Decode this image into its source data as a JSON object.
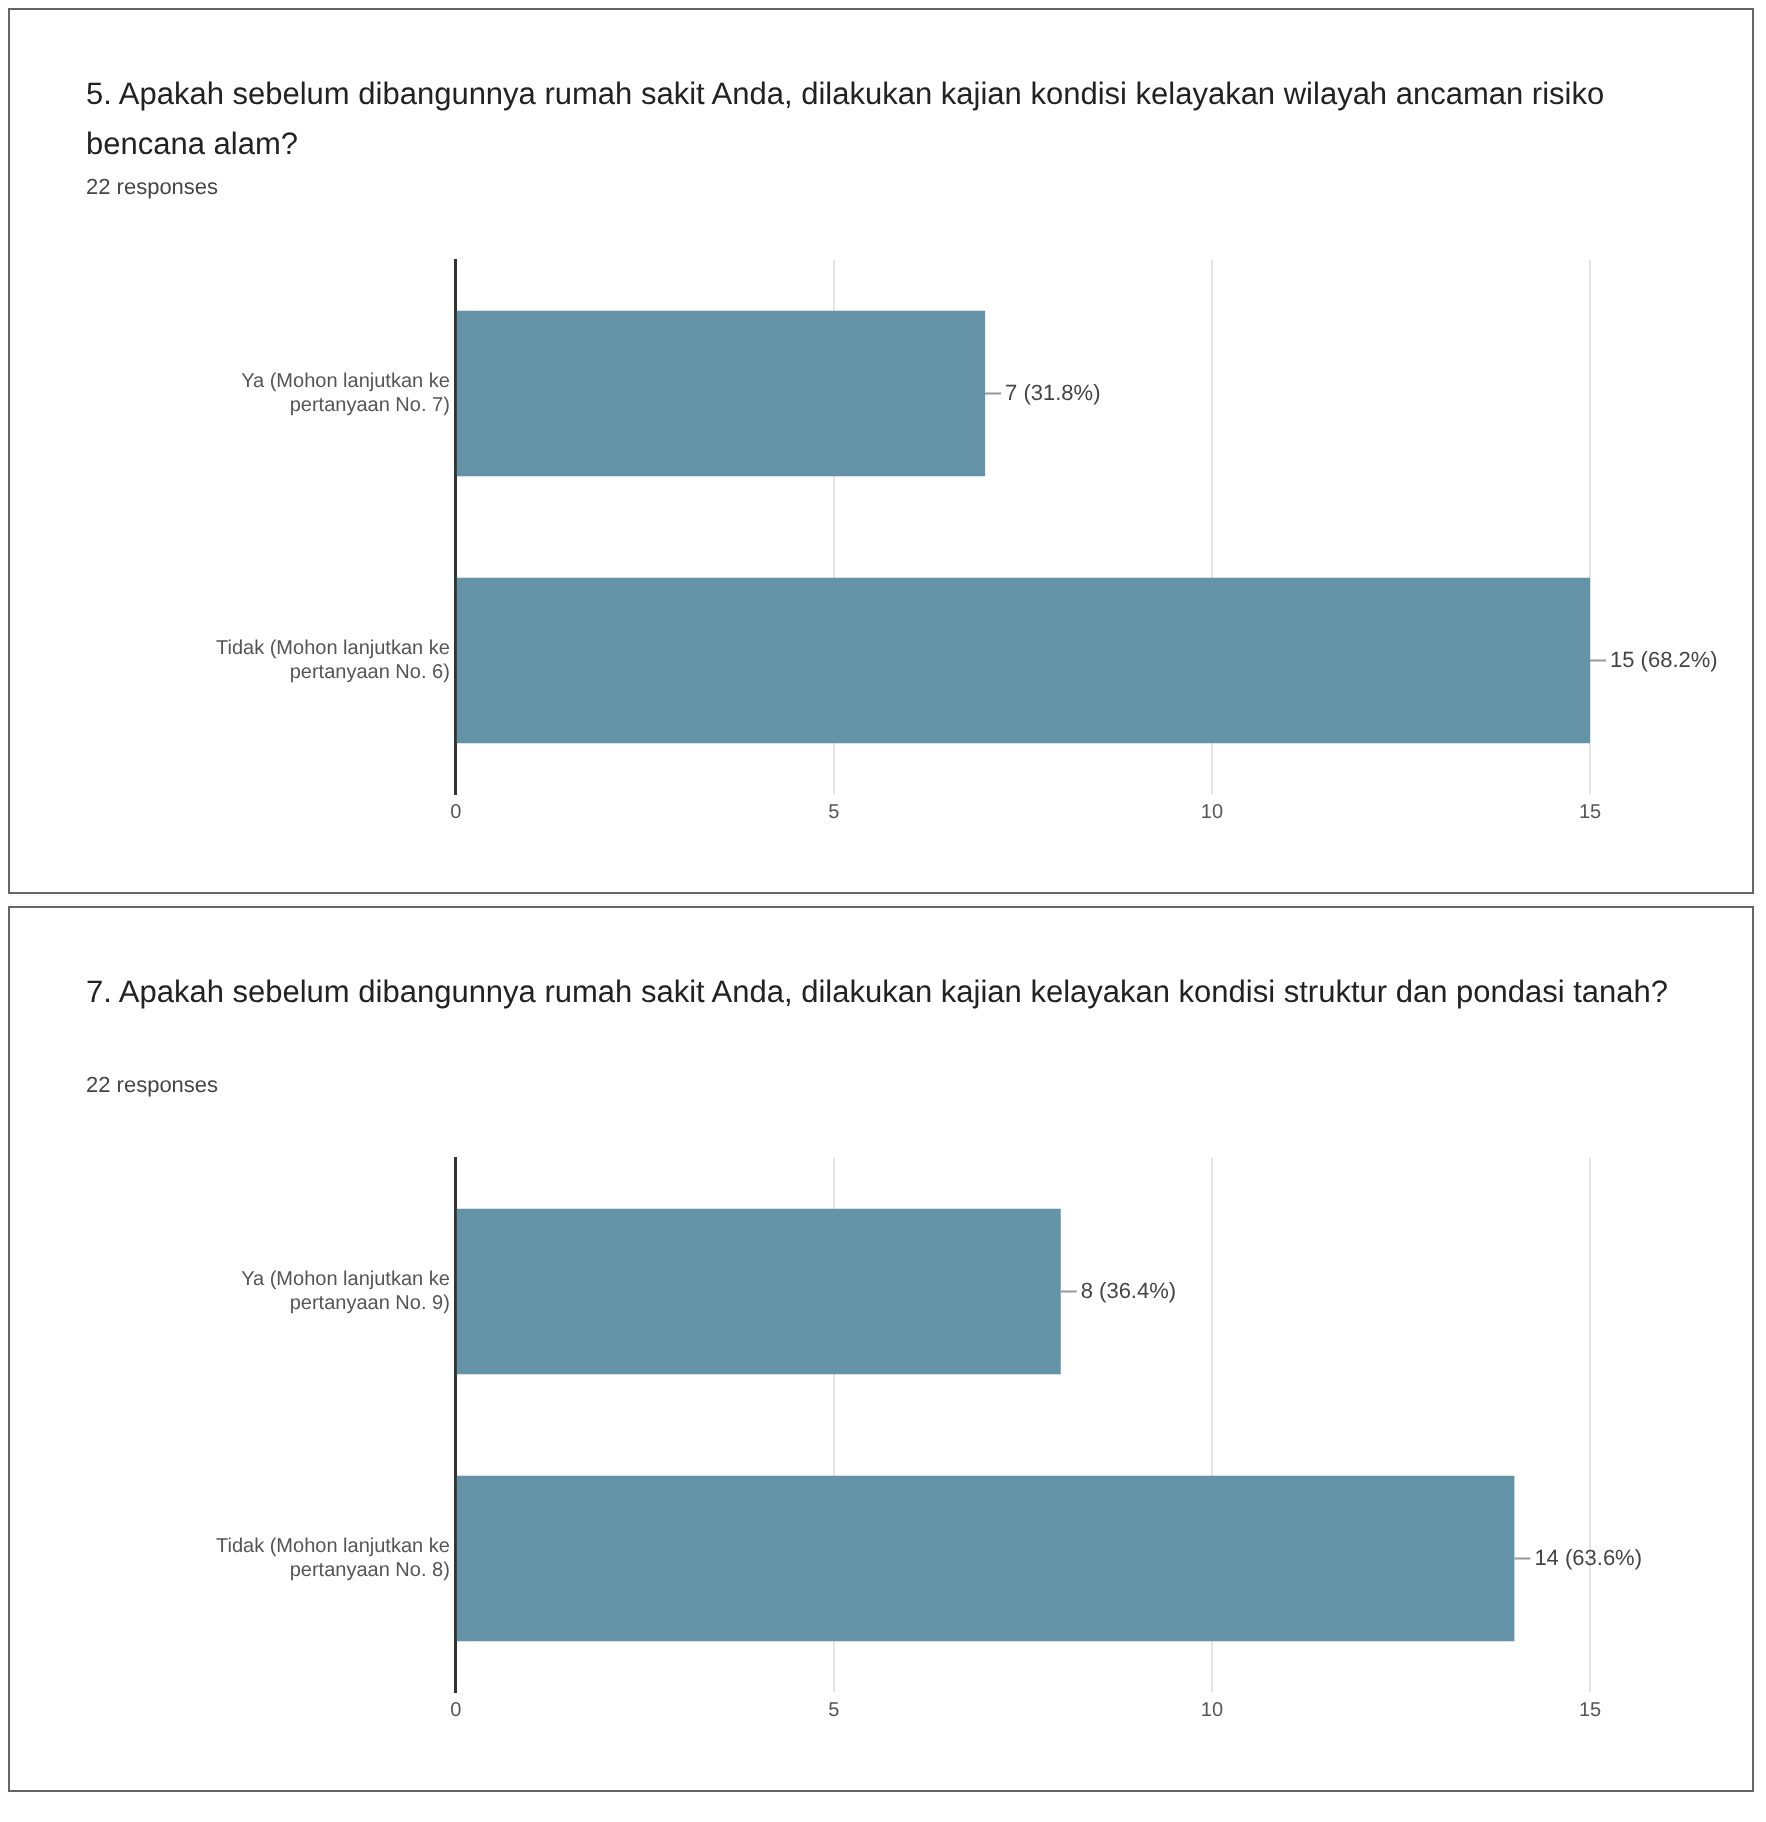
{
  "chart_data": [
    {
      "type": "bar",
      "orientation": "horizontal",
      "title": "5.  Apakah sebelum dibangunnya rumah sakit Anda, dilakukan kajian kondisi kelayakan wilayah ancaman risiko bencana alam?",
      "subtitle": "22 responses",
      "categories": [
        "Ya (Mohon lanjutkan ke pertanyaan No. 7)",
        "Tidak (Mohon lanjutkan ke pertanyaan No. 6)"
      ],
      "values": [
        7,
        15
      ],
      "value_labels": [
        "7 (31.8%)",
        "15 (68.2%)"
      ],
      "color": "#6492a6",
      "xlim": [
        0,
        15
      ],
      "xticks": [
        0,
        5,
        10,
        15
      ],
      "grid": "x",
      "legend": false
    },
    {
      "type": "bar",
      "orientation": "horizontal",
      "title": "7. Apakah sebelum dibangunnya rumah sakit Anda, dilakukan kajian kelayakan kondisi struktur dan pondasi tanah?",
      "subtitle": "22 responses",
      "categories": [
        "Ya (Mohon lanjutkan ke pertanyaan No. 9)",
        "Tidak (Mohon lanjutkan ke pertanyaan No. 8)"
      ],
      "values": [
        8,
        14
      ],
      "value_labels": [
        "8 (36.4%)",
        "14 (63.6%)"
      ],
      "color": "#6492a6",
      "xlim": [
        0,
        15
      ],
      "xticks": [
        0,
        5,
        10,
        15
      ],
      "grid": "x",
      "legend": false
    }
  ]
}
